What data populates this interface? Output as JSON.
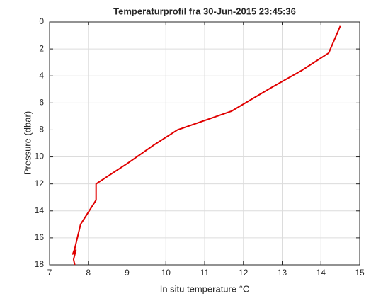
{
  "chart_data": {
    "type": "line",
    "title": "Temperaturprofil fra  30-Jun-2015 23:45:36",
    "x_label": "In situ temperature  °C",
    "y_label": "Pressure (dbar)",
    "x": [
      14.5,
      14.2,
      13.5,
      12.7,
      11.7,
      10.3,
      9.7,
      9.0,
      8.2,
      8.2,
      7.8,
      7.7,
      7.65,
      7.6,
      7.68,
      7.62,
      7.65
    ],
    "series": [
      {
        "color": "#e00000",
        "values": [
          0.3,
          2.3,
          3.6,
          4.9,
          6.6,
          8.0,
          9.1,
          10.5,
          12.0,
          13.2,
          15.0,
          16.2,
          16.8,
          17.2,
          16.9,
          17.6,
          18.0
        ]
      }
    ],
    "xlim": [
      7,
      15
    ],
    "xticks": [
      7,
      8,
      9,
      10,
      11,
      12,
      13,
      14,
      15
    ],
    "ylim": [
      0,
      18
    ],
    "yticks": [
      0,
      2,
      4,
      6,
      8,
      10,
      12,
      14,
      16,
      18
    ],
    "y_reversed": true,
    "grid": true
  }
}
